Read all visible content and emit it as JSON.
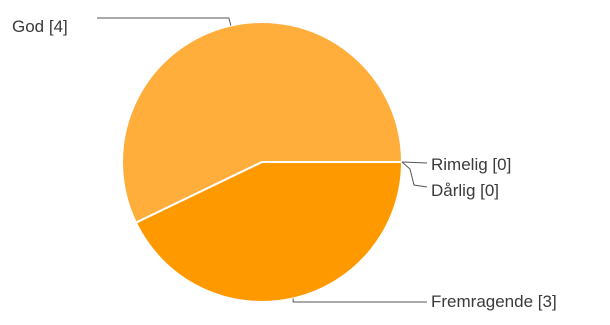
{
  "chart_data": {
    "type": "pie",
    "categories": [
      "God",
      "Fremragende",
      "Rimelig",
      "Dårlig"
    ],
    "values": [
      4,
      3,
      0,
      0
    ],
    "labels": [
      "God [4]",
      "Fremragende [3]",
      "Rimelig [0]",
      "Dårlig [0]"
    ],
    "colors": [
      "#FFAE3C",
      "#FF9900",
      "#FF9900",
      "#FF9900"
    ],
    "start": "3 o'clock",
    "direction": "counter-clockwise",
    "legend": "none"
  }
}
